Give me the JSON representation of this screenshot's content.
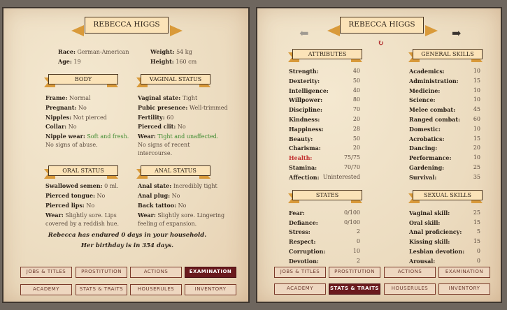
{
  "character_name": "REBECCA HIGGS",
  "profile": {
    "race_label": "Race:",
    "race": "German-American",
    "age_label": "Age:",
    "age": "19",
    "weight_label": "Weight:",
    "weight": "54 kg",
    "height_label": "Height:",
    "height": "160 cm"
  },
  "body": {
    "title": "BODY",
    "items": [
      {
        "label": "Frame:",
        "value": "Normal"
      },
      {
        "label": "Pregnant:",
        "value": "No"
      },
      {
        "label": "Nipples:",
        "value": "Not pierced"
      },
      {
        "label": "Collar:",
        "value": "No"
      }
    ],
    "wear_label": "Nipple wear:",
    "wear_green": "Soft and fresh.",
    "wear_rest": "No signs of abuse."
  },
  "vaginal": {
    "title": "VAGINAL STATUS",
    "items": [
      {
        "label": "Vaginal state:",
        "value": "Tight"
      },
      {
        "label": "Pubic presence:",
        "value": "Well-trimmed"
      },
      {
        "label": "Fertility:",
        "value": "60"
      },
      {
        "label": "Pierced clit:",
        "value": "No"
      }
    ],
    "wear_label": "Wear:",
    "wear_green": "Tight and unaffected.",
    "wear_rest": "No signs of recent intercourse."
  },
  "oral": {
    "title": "ORAL STATUS",
    "items": [
      {
        "label": "Swallowed semen:",
        "value": "0 ml."
      },
      {
        "label": "Pierced tongue:",
        "value": "No"
      },
      {
        "label": "Pierced lips:",
        "value": "No"
      }
    ],
    "wear_label": "Wear:",
    "wear": "Slightly sore. Lips covered by a reddish hue."
  },
  "anal": {
    "title": "ANAL STATUS",
    "items": [
      {
        "label": "Anal state:",
        "value": "Incredibly tight"
      },
      {
        "label": "Anal plug:",
        "value": "No"
      },
      {
        "label": "Back tattoo:",
        "value": "No"
      }
    ],
    "wear_label": "Wear:",
    "wear": "Slightly sore. Lingering feeling of expansion."
  },
  "footer_lines": [
    "Rebecca has endured 0 days in your household.",
    "Her birthday is in 354 days."
  ],
  "nav_buttons": [
    "JOBS & TITLES",
    "PROSTITUTION",
    "ACTIONS",
    "EXAMINATION",
    "ACADEMY",
    "STATS & TRAITS",
    "HOUSERULES",
    "INVENTORY"
  ],
  "left_active": "EXAMINATION",
  "right_active": "STATS & TRAITS",
  "attributes": {
    "title": "ATTRIBUTES",
    "rows": [
      [
        "Strength:",
        "40"
      ],
      [
        "Dexterity:",
        "50"
      ],
      [
        "Intelligence:",
        "40"
      ],
      [
        "Willpower:",
        "80"
      ],
      [
        "Discipline:",
        "70"
      ],
      [
        "Kindness:",
        "20"
      ],
      [
        "Happiness:",
        "28"
      ],
      [
        "Beauty:",
        "50"
      ],
      [
        "Charisma:",
        "20"
      ],
      [
        "Health:",
        "75/75"
      ],
      [
        "Stamina:",
        "70/70"
      ],
      [
        "Affection:",
        "Uninterested"
      ]
    ]
  },
  "general_skills": {
    "title": "GENERAL SKILLS",
    "rows": [
      [
        "Academics:",
        "10"
      ],
      [
        "Administration:",
        "15"
      ],
      [
        "Medicine:",
        "10"
      ],
      [
        "Science:",
        "10"
      ],
      [
        "Melee combat:",
        "45"
      ],
      [
        "Ranged combat:",
        "60"
      ],
      [
        "Domestic:",
        "10"
      ],
      [
        "Acrobatics:",
        "15"
      ],
      [
        "Dancing:",
        "20"
      ],
      [
        "Performance:",
        "10"
      ],
      [
        "Gardening:",
        "25"
      ],
      [
        "Survival:",
        "35"
      ]
    ]
  },
  "states": {
    "title": "STATES",
    "rows": [
      [
        "Fear:",
        "0/100"
      ],
      [
        "Defiance:",
        "0/100"
      ],
      [
        "Stress:",
        "2"
      ],
      [
        "Respect:",
        "0"
      ],
      [
        "Corruption:",
        "10"
      ],
      [
        "Devotion:",
        "2"
      ]
    ]
  },
  "sexual_skills": {
    "title": "SEXUAL SKILLS",
    "rows": [
      [
        "Vaginal skill:",
        "25"
      ],
      [
        "Oral skill:",
        "15"
      ],
      [
        "Anal proficiency:",
        "5"
      ],
      [
        "Kissing skill:",
        "15"
      ],
      [
        "Lesbian devotion:",
        "0"
      ],
      [
        "Arousal:",
        "0"
      ]
    ]
  },
  "colors": {
    "health": "#c23030",
    "positive": "#3c8a2e",
    "active_button": "#6a1a1e",
    "ribbon": "#d99a3a"
  },
  "icons": {
    "prev": "arrow-left-icon",
    "next": "arrow-right-icon",
    "auto": "auto-cycle-icon"
  }
}
